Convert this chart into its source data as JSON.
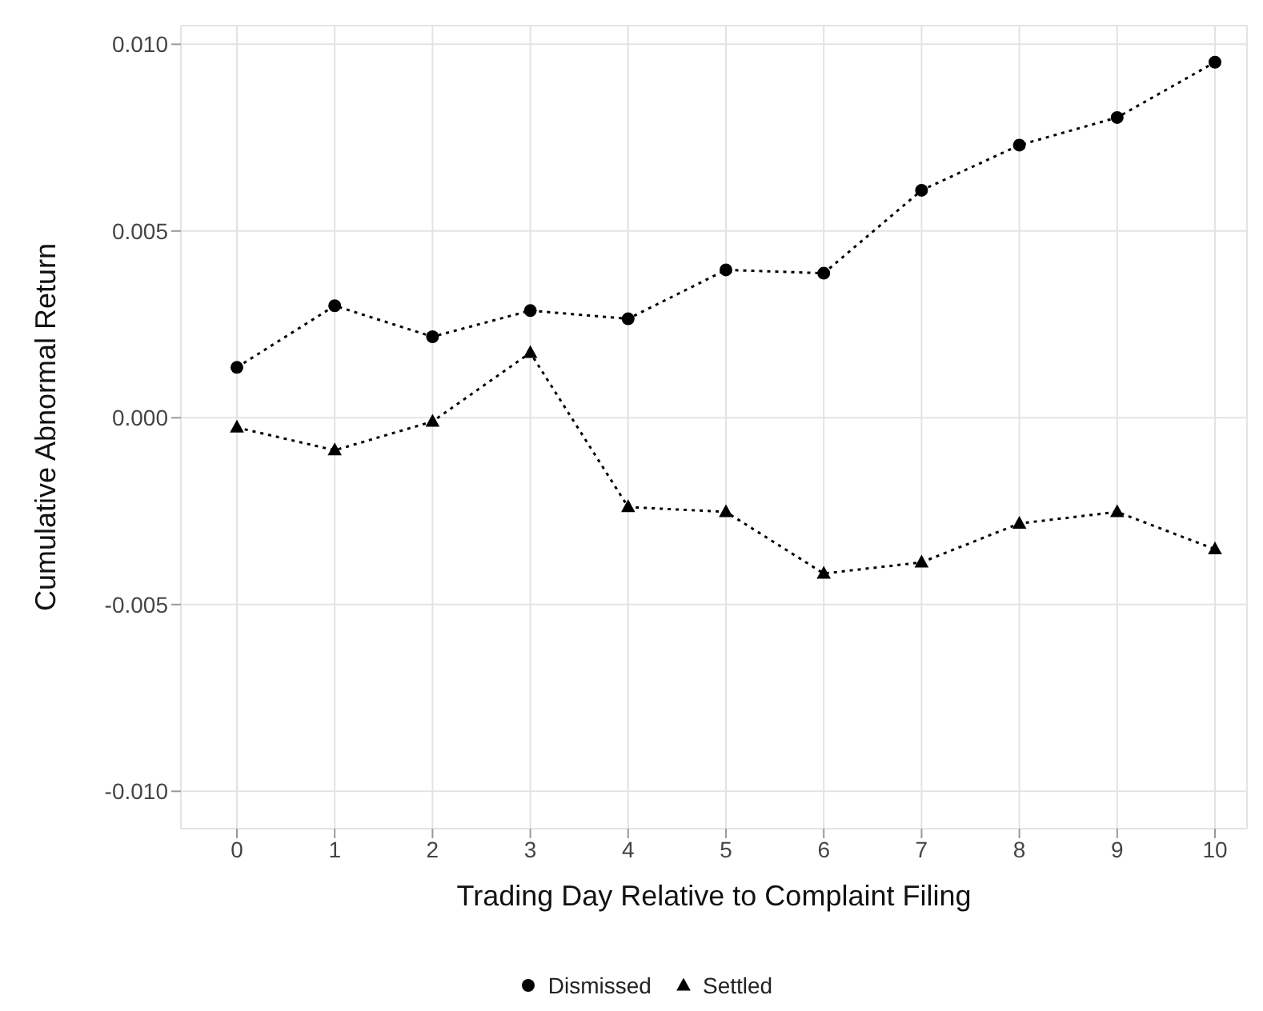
{
  "chart_data": {
    "type": "line",
    "xlabel": "Trading Day Relative to Complaint Filing",
    "ylabel": "Cumulative Abnormal Return",
    "categories": [
      "0",
      "1",
      "2",
      "3",
      "4",
      "5",
      "6",
      "7",
      "8",
      "9",
      "10"
    ],
    "series": [
      {
        "name": "Dismissed",
        "color": "#000000",
        "marker": "circle",
        "values": [
          0.00135,
          0.003,
          0.00217,
          0.00287,
          0.00265,
          0.00396,
          0.00387,
          0.00609,
          0.0073,
          0.00804,
          0.00952
        ]
      },
      {
        "name": "Settled",
        "color": "#000000",
        "marker": "triangle",
        "values": [
          -0.00026,
          -0.00087,
          -0.0001,
          0.00174,
          -0.00239,
          -0.00252,
          -0.00417,
          -0.00387,
          -0.00283,
          -0.00252,
          -0.00352
        ]
      }
    ],
    "ylim": [
      -0.011,
      0.0105
    ],
    "yticks": [
      {
        "value": -0.01,
        "label": "-0.010"
      },
      {
        "value": -0.005,
        "label": "-0.005"
      },
      {
        "value": 0,
        "label": "0.000"
      },
      {
        "value": 0.005,
        "label": "0.005"
      },
      {
        "value": 0.01,
        "label": "0.010"
      }
    ],
    "grid": true,
    "legend": "bottom",
    "line_style": "dotted"
  }
}
